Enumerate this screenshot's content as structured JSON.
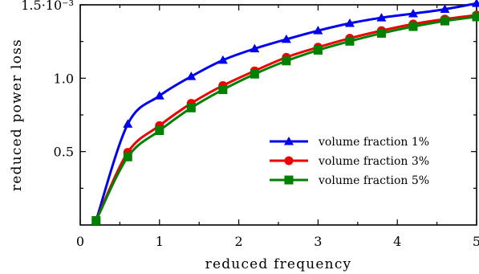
{
  "chart_data": {
    "type": "line",
    "xlabel": "reduced frequency",
    "ylabel": "reduced power loss",
    "xlim": [
      0,
      5
    ],
    "ylim": [
      0,
      0.0015
    ],
    "x_ticks": [
      0,
      1,
      2,
      3,
      4,
      5
    ],
    "x_tick_labels": [
      "0",
      "1",
      "2",
      "3",
      "4",
      "5"
    ],
    "y_ticks": [
      0.0005,
      0.001,
      0.0015
    ],
    "y_tick_labels": [
      "0.5",
      "1.0",
      "1.5·10⁻³"
    ],
    "grid": false,
    "legend_position": "right",
    "series": [
      {
        "name": "volume fraction 1%",
        "color": "#0000ee",
        "marker": "triangle",
        "x": [
          0.2,
          0.6,
          1.0,
          1.4,
          1.8,
          2.2,
          2.6,
          3.0,
          3.4,
          3.8,
          4.2,
          4.6,
          5.0
        ],
        "y": [
          3e-05,
          0.000688,
          0.00088,
          0.001012,
          0.001123,
          0.001201,
          0.001265,
          0.001324,
          0.001374,
          0.001412,
          0.00144,
          0.00147,
          0.00151
        ]
      },
      {
        "name": "volume fraction 3%",
        "color": "#ee0000",
        "marker": "circle",
        "x": [
          0.2,
          0.6,
          1.0,
          1.4,
          1.8,
          2.2,
          2.6,
          3.0,
          3.4,
          3.8,
          4.2,
          4.6,
          5.0
        ],
        "y": [
          3e-05,
          0.000495,
          0.000677,
          0.000829,
          0.00095,
          0.00105,
          0.001142,
          0.001211,
          0.001272,
          0.001324,
          0.001369,
          0.001403,
          0.00143
        ]
      },
      {
        "name": "volume fraction 5%",
        "color": "#008000",
        "marker": "square",
        "x": [
          0.2,
          0.6,
          1.0,
          1.4,
          1.8,
          2.2,
          2.6,
          3.0,
          3.4,
          3.8,
          4.2,
          4.6,
          5.0
        ],
        "y": [
          3e-05,
          0.000464,
          0.000643,
          0.000798,
          0.000922,
          0.001028,
          0.001118,
          0.001191,
          0.001252,
          0.001306,
          0.001352,
          0.00139,
          0.001418
        ]
      }
    ]
  }
}
